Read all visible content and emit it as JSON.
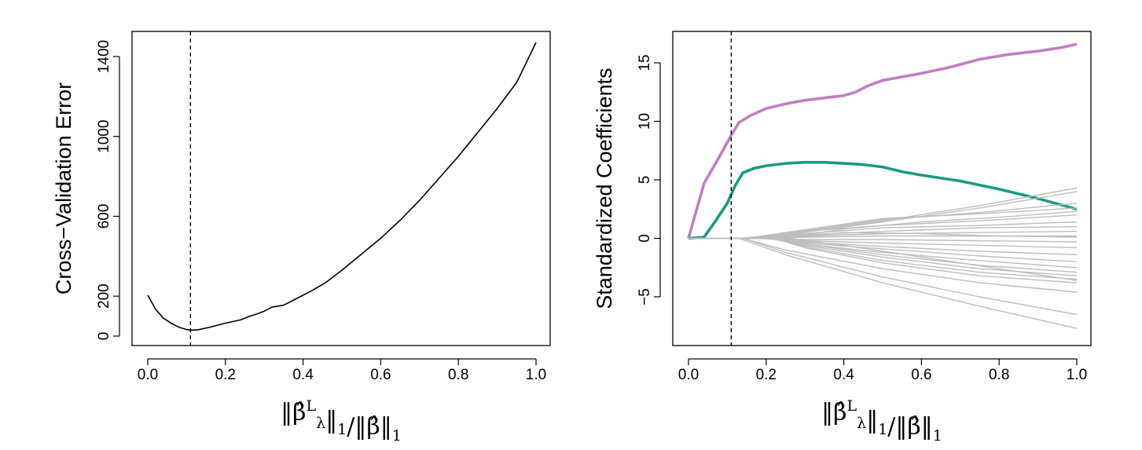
{
  "chart_data": [
    {
      "type": "line",
      "xlabel": "||β̂λL||1/||β̂||1",
      "ylabel": "Cross−Validation Error",
      "xlim": [
        0.0,
        1.0
      ],
      "ylim": [
        0,
        1400
      ],
      "xticks": [
        "0.0",
        "0.2",
        "0.4",
        "0.6",
        "0.8",
        "1.0"
      ],
      "yticks": [
        "0",
        "200",
        "600",
        "1000",
        "1400"
      ],
      "vline": 0.11,
      "grid": false,
      "series": [
        {
          "color": "#000000",
          "x": [
            0.0,
            0.02,
            0.04,
            0.06,
            0.08,
            0.1,
            0.11,
            0.13,
            0.16,
            0.2,
            0.24,
            0.26,
            0.28,
            0.3,
            0.32,
            0.35,
            0.38,
            0.42,
            0.46,
            0.5,
            0.55,
            0.6,
            0.65,
            0.7,
            0.75,
            0.8,
            0.85,
            0.9,
            0.95,
            1.0
          ],
          "y": [
            205,
            135,
            90,
            65,
            45,
            33,
            30,
            32,
            45,
            65,
            82,
            98,
            110,
            125,
            145,
            155,
            185,
            225,
            270,
            330,
            410,
            490,
            580,
            680,
            790,
            900,
            1020,
            1140,
            1270,
            1470
          ]
        }
      ]
    },
    {
      "type": "line",
      "xlabel": "||β̂λL||1/||β̂||1",
      "ylabel": "Standardized Coefficients",
      "xlim": [
        0.0,
        1.0
      ],
      "ylim": [
        -8,
        16.5
      ],
      "xticks": [
        "0.0",
        "0.2",
        "0.4",
        "0.6",
        "0.8",
        "1.0"
      ],
      "yticks": [
        "−5",
        "0",
        "5",
        "10",
        "15"
      ],
      "vline": 0.11,
      "grid": false,
      "series": [
        {
          "color": "#c17ec1",
          "x": [
            0,
            0.04,
            0.08,
            0.11,
            0.13,
            0.16,
            0.2,
            0.25,
            0.3,
            0.35,
            0.4,
            0.43,
            0.46,
            0.5,
            0.55,
            0.6,
            0.67,
            0.75,
            0.82,
            0.9,
            0.96,
            1.0
          ],
          "y": [
            0,
            4.7,
            7.0,
            8.8,
            9.9,
            10.5,
            11.1,
            11.5,
            11.8,
            12.0,
            12.2,
            12.5,
            13.0,
            13.5,
            13.8,
            14.1,
            14.6,
            15.3,
            15.7,
            16.0,
            16.3,
            16.6
          ]
        },
        {
          "color": "#1b9a80",
          "x": [
            0,
            0.04,
            0.07,
            0.1,
            0.12,
            0.14,
            0.17,
            0.2,
            0.25,
            0.3,
            0.35,
            0.4,
            0.45,
            0.5,
            0.55,
            0.6,
            0.7,
            0.8,
            0.9,
            1.0
          ],
          "y": [
            0,
            0.1,
            1.5,
            3.0,
            4.5,
            5.6,
            6.0,
            6.2,
            6.4,
            6.5,
            6.5,
            6.4,
            6.3,
            6.1,
            5.7,
            5.4,
            4.9,
            4.2,
            3.4,
            2.5
          ]
        },
        {
          "color": "#bdbdbd",
          "x": [
            0,
            0.13,
            0.25,
            0.5,
            0.75,
            1.0
          ],
          "y": [
            0,
            0,
            0.3,
            1.5,
            2.8,
            4.3
          ]
        },
        {
          "color": "#bdbdbd",
          "x": [
            0,
            0.13,
            0.25,
            0.5,
            0.75,
            1.0
          ],
          "y": [
            0,
            0,
            0.3,
            1.4,
            2.6,
            4.0
          ]
        },
        {
          "color": "#bdbdbd",
          "x": [
            0,
            0.14,
            0.25,
            0.5,
            0.75,
            1.0
          ],
          "y": [
            0,
            0,
            0.4,
            1.6,
            2.2,
            3.0
          ]
        },
        {
          "color": "#bdbdbd",
          "x": [
            0,
            0.15,
            0.25,
            0.5,
            0.75,
            1.0
          ],
          "y": [
            0,
            0,
            0.5,
            1.7,
            2.1,
            2.6
          ]
        },
        {
          "color": "#bdbdbd",
          "x": [
            0,
            0.15,
            0.3,
            0.5,
            0.75,
            1.0
          ],
          "y": [
            0,
            0,
            0.6,
            1.1,
            1.5,
            2.0
          ]
        },
        {
          "color": "#bdbdbd",
          "x": [
            0,
            0.16,
            0.3,
            0.5,
            0.75,
            1.0
          ],
          "y": [
            0,
            0,
            0.4,
            0.9,
            1.1,
            1.4
          ]
        },
        {
          "color": "#bdbdbd",
          "x": [
            0,
            0.16,
            0.3,
            0.5,
            0.75,
            1.0
          ],
          "y": [
            0,
            0,
            0.3,
            0.6,
            0.9,
            1.0
          ]
        },
        {
          "color": "#bdbdbd",
          "x": [
            0,
            0.17,
            0.3,
            0.5,
            0.75,
            1.0
          ],
          "y": [
            0,
            0,
            0.2,
            0.4,
            0.5,
            0.6
          ]
        },
        {
          "color": "#bdbdbd",
          "x": [
            0,
            0.17,
            0.3,
            0.5,
            0.75,
            1.0
          ],
          "y": [
            0,
            0,
            0.1,
            0.2,
            0.2,
            0.2
          ]
        },
        {
          "color": "#bdbdbd",
          "x": [
            0,
            0.18,
            0.3,
            0.5,
            0.75,
            1.0
          ],
          "y": [
            0,
            0,
            -0.1,
            -0.1,
            -0.2,
            -0.3
          ]
        },
        {
          "color": "#bdbdbd",
          "x": [
            0,
            0.18,
            0.3,
            0.5,
            0.75,
            1.0
          ],
          "y": [
            0,
            0,
            -0.2,
            -0.4,
            -0.6,
            -0.8
          ]
        },
        {
          "color": "#bdbdbd",
          "x": [
            0,
            0.19,
            0.3,
            0.5,
            0.75,
            1.0
          ],
          "y": [
            0,
            0,
            -0.3,
            -0.7,
            -1.1,
            -1.4
          ]
        },
        {
          "color": "#bdbdbd",
          "x": [
            0,
            0.2,
            0.3,
            0.5,
            0.75,
            1.0
          ],
          "y": [
            0,
            0,
            -0.4,
            -0.9,
            -1.5,
            -2.0
          ]
        },
        {
          "color": "#bdbdbd",
          "x": [
            0,
            0.2,
            0.3,
            0.5,
            0.75,
            1.0
          ],
          "y": [
            0,
            0,
            -0.5,
            -1.2,
            -1.9,
            -2.5
          ]
        },
        {
          "color": "#bdbdbd",
          "x": [
            0,
            0.21,
            0.3,
            0.5,
            0.75,
            1.0
          ],
          "y": [
            0,
            0,
            -0.5,
            -1.4,
            -2.3,
            -2.9
          ]
        },
        {
          "color": "#bdbdbd",
          "x": [
            0,
            0.21,
            0.3,
            0.5,
            0.75,
            1.0
          ],
          "y": [
            0,
            0,
            -0.6,
            -1.6,
            -2.6,
            -3.2
          ]
        },
        {
          "color": "#bdbdbd",
          "x": [
            0,
            0.22,
            0.3,
            0.5,
            0.75,
            1.0
          ],
          "y": [
            0,
            0,
            -0.7,
            -1.9,
            -2.9,
            -3.5
          ]
        },
        {
          "color": "#bdbdbd",
          "x": [
            0,
            0.22,
            0.3,
            0.5,
            0.75,
            1.0
          ],
          "y": [
            0,
            0,
            -0.8,
            -2.1,
            -3.2,
            -3.8
          ]
        },
        {
          "color": "#bdbdbd",
          "x": [
            0,
            0.14,
            0.25,
            0.5,
            0.75,
            1.0
          ],
          "y": [
            0,
            0,
            -1.0,
            -2.6,
            -3.8,
            -4.6
          ]
        },
        {
          "color": "#bdbdbd",
          "x": [
            0,
            0.14,
            0.25,
            0.5,
            0.75,
            1.0
          ],
          "y": [
            0,
            0,
            -1.2,
            -3.3,
            -5.0,
            -6.5
          ]
        },
        {
          "color": "#bdbdbd",
          "x": [
            0,
            0.13,
            0.25,
            0.5,
            0.75,
            1.0
          ],
          "y": [
            0,
            0,
            -1.4,
            -3.8,
            -5.8,
            -7.7
          ]
        },
        {
          "color": "#bdbdbd",
          "x": [
            0,
            0.24,
            0.4,
            0.6,
            0.8,
            1.0
          ],
          "y": [
            0,
            0,
            0.8,
            1.4,
            1.8,
            2.3
          ]
        },
        {
          "color": "#bdbdbd",
          "x": [
            0,
            0.25,
            0.4,
            0.6,
            0.8,
            1.0
          ],
          "y": [
            0,
            0,
            -0.6,
            -1.6,
            -2.6,
            -3.6
          ]
        },
        {
          "color": "#bdbdbd",
          "x": [
            0,
            0.26,
            0.4,
            0.6,
            0.8,
            1.0
          ],
          "y": [
            0,
            0,
            0.5,
            0.4,
            0.2,
            0.1
          ]
        }
      ]
    }
  ]
}
